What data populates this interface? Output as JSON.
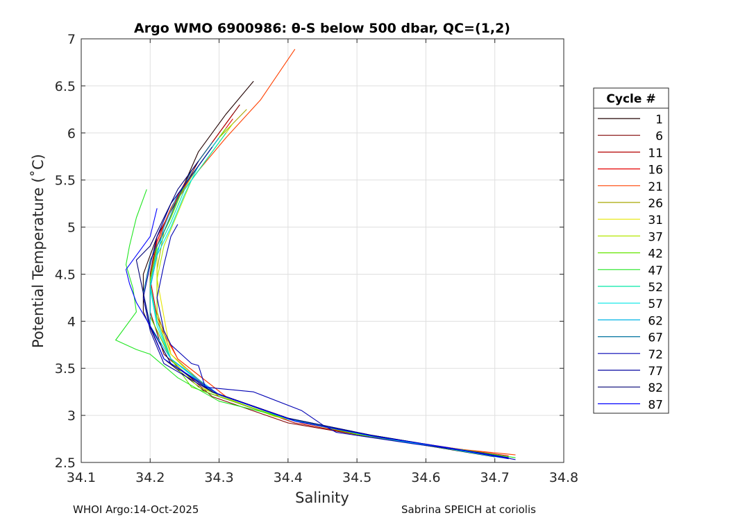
{
  "chart_data": {
    "type": "line",
    "title": "Argo WMO 6900986: θ-S below 500 dbar,  QC=(1,2)",
    "xlabel": "Salinity",
    "ylabel": "Potential Temperature (˚C)",
    "xlim": [
      34.1,
      34.8
    ],
    "ylim": [
      2.5,
      7
    ],
    "xticks": [
      "34.1",
      "34.2",
      "34.3",
      "34.4",
      "34.5",
      "34.6",
      "34.7",
      "34.8"
    ],
    "yticks": [
      "2.5",
      "3",
      "3.5",
      "4",
      "4.5",
      "5",
      "5.5",
      "6",
      "6.5",
      "7"
    ],
    "grid": true,
    "legend_title": "Cycle #",
    "legend_position": "right",
    "series": [
      {
        "name": "1",
        "color": "#200000",
        "points": [
          [
            34.35,
            6.55
          ],
          [
            34.31,
            6.2
          ],
          [
            34.27,
            5.8
          ],
          [
            34.24,
            5.3
          ],
          [
            34.21,
            4.9
          ],
          [
            34.19,
            4.5
          ],
          [
            34.19,
            4.1
          ],
          [
            34.22,
            3.6
          ],
          [
            34.28,
            3.25
          ],
          [
            34.38,
            3.0
          ],
          [
            34.5,
            2.8
          ],
          [
            34.6,
            2.68
          ],
          [
            34.7,
            2.56
          ]
        ]
      },
      {
        "name": "6",
        "color": "#7f0000",
        "points": [
          [
            34.33,
            6.3
          ],
          [
            34.3,
            6.0
          ],
          [
            34.27,
            5.7
          ],
          [
            34.24,
            5.3
          ],
          [
            34.21,
            4.9
          ],
          [
            34.2,
            4.5
          ],
          [
            34.2,
            4.1
          ],
          [
            34.22,
            3.65
          ],
          [
            34.29,
            3.2
          ],
          [
            34.4,
            2.92
          ],
          [
            34.52,
            2.77
          ],
          [
            34.62,
            2.66
          ],
          [
            34.72,
            2.55
          ]
        ]
      },
      {
        "name": "11",
        "color": "#b30000",
        "points": [
          [
            34.32,
            6.2
          ],
          [
            34.29,
            5.9
          ],
          [
            34.26,
            5.6
          ],
          [
            34.23,
            5.2
          ],
          [
            34.21,
            4.85
          ],
          [
            34.2,
            4.45
          ],
          [
            34.2,
            4.05
          ],
          [
            34.23,
            3.6
          ],
          [
            34.3,
            3.2
          ],
          [
            34.41,
            2.92
          ],
          [
            34.53,
            2.76
          ],
          [
            34.63,
            2.65
          ],
          [
            34.72,
            2.54
          ]
        ]
      },
      {
        "name": "16",
        "color": "#e60000",
        "points": [
          [
            34.32,
            6.15
          ],
          [
            34.29,
            5.85
          ],
          [
            34.26,
            5.55
          ],
          [
            34.23,
            5.2
          ],
          [
            34.21,
            4.85
          ],
          [
            34.2,
            4.45
          ],
          [
            34.21,
            4.05
          ],
          [
            34.24,
            3.6
          ],
          [
            34.31,
            3.2
          ],
          [
            34.42,
            2.92
          ],
          [
            34.54,
            2.76
          ],
          [
            34.64,
            2.65
          ],
          [
            34.72,
            2.57
          ]
        ]
      },
      {
        "name": "21",
        "color": "#ff4000",
        "points": [
          [
            34.41,
            6.89
          ],
          [
            34.36,
            6.35
          ],
          [
            34.31,
            5.95
          ],
          [
            34.27,
            5.6
          ],
          [
            34.23,
            5.2
          ],
          [
            34.21,
            4.8
          ],
          [
            34.2,
            4.4
          ],
          [
            34.21,
            4.0
          ],
          [
            34.24,
            3.6
          ],
          [
            34.31,
            3.2
          ],
          [
            34.42,
            2.92
          ],
          [
            34.55,
            2.75
          ],
          [
            34.65,
            2.64
          ],
          [
            34.73,
            2.58
          ]
        ]
      },
      {
        "name": "26",
        "color": "#a6a600",
        "points": [
          [
            34.34,
            6.25
          ],
          [
            34.3,
            5.95
          ],
          [
            34.27,
            5.65
          ],
          [
            34.24,
            5.3
          ],
          [
            34.22,
            4.95
          ],
          [
            34.21,
            4.55
          ],
          [
            34.21,
            4.1
          ],
          [
            34.23,
            3.65
          ],
          [
            34.29,
            3.25
          ],
          [
            34.4,
            2.96
          ],
          [
            34.52,
            2.78
          ],
          [
            34.62,
            2.66
          ],
          [
            34.71,
            2.56
          ]
        ]
      },
      {
        "name": "31",
        "color": "#e6e600",
        "points": [
          [
            34.31,
            6.05
          ],
          [
            34.28,
            5.75
          ],
          [
            34.25,
            5.45
          ],
          [
            34.23,
            5.1
          ],
          [
            34.21,
            4.8
          ],
          [
            34.21,
            4.45
          ],
          [
            34.22,
            4.05
          ],
          [
            34.23,
            3.65
          ],
          [
            34.28,
            3.28
          ],
          [
            34.39,
            2.98
          ],
          [
            34.51,
            2.79
          ],
          [
            34.61,
            2.67
          ],
          [
            34.71,
            2.56
          ]
        ]
      },
      {
        "name": "37",
        "color": "#b3e600",
        "points": [
          [
            34.32,
            6.1
          ],
          [
            34.29,
            5.8
          ],
          [
            34.26,
            5.5
          ],
          [
            34.24,
            5.15
          ],
          [
            34.22,
            4.8
          ],
          [
            34.21,
            4.45
          ],
          [
            34.21,
            4.05
          ],
          [
            34.23,
            3.6
          ],
          [
            34.27,
            3.3
          ],
          [
            34.38,
            2.99
          ],
          [
            34.5,
            2.8
          ],
          [
            34.61,
            2.67
          ],
          [
            34.71,
            2.56
          ]
        ]
      },
      {
        "name": "42",
        "color": "#66e600",
        "points": [
          [
            34.31,
            6.05
          ],
          [
            34.28,
            5.75
          ],
          [
            34.25,
            5.45
          ],
          [
            34.23,
            5.1
          ],
          [
            34.21,
            4.8
          ],
          [
            34.2,
            4.45
          ],
          [
            34.2,
            4.05
          ],
          [
            34.23,
            3.6
          ],
          [
            34.26,
            3.3
          ],
          [
            34.38,
            3.0
          ],
          [
            34.5,
            2.8
          ],
          [
            34.61,
            2.67
          ],
          [
            34.72,
            2.55
          ]
        ]
      },
      {
        "name": "47",
        "color": "#20e620",
        "points": [
          [
            34.195,
            5.4
          ],
          [
            34.18,
            5.1
          ],
          [
            34.17,
            4.8
          ],
          [
            34.165,
            4.6
          ],
          [
            34.175,
            4.35
          ],
          [
            34.18,
            4.1
          ],
          [
            34.15,
            3.8
          ],
          [
            34.18,
            3.7
          ],
          [
            34.2,
            3.65
          ],
          [
            34.24,
            3.4
          ],
          [
            34.3,
            3.15
          ],
          [
            34.4,
            2.97
          ],
          [
            34.52,
            2.79
          ],
          [
            34.62,
            2.67
          ],
          [
            34.73,
            2.55
          ]
        ]
      },
      {
        "name": "52",
        "color": "#00e6a6",
        "points": [
          [
            34.31,
            6.0
          ],
          [
            34.28,
            5.7
          ],
          [
            34.25,
            5.4
          ],
          [
            34.23,
            5.05
          ],
          [
            34.21,
            4.75
          ],
          [
            34.2,
            4.4
          ],
          [
            34.21,
            4.0
          ],
          [
            34.23,
            3.6
          ],
          [
            34.29,
            3.25
          ],
          [
            34.4,
            2.96
          ],
          [
            34.52,
            2.78
          ],
          [
            34.62,
            2.66
          ],
          [
            34.71,
            2.56
          ]
        ]
      },
      {
        "name": "57",
        "color": "#00e6e6",
        "points": [
          [
            34.3,
            5.95
          ],
          [
            34.27,
            5.65
          ],
          [
            34.25,
            5.35
          ],
          [
            34.23,
            5.0
          ],
          [
            34.21,
            4.7
          ],
          [
            34.2,
            4.35
          ],
          [
            34.21,
            3.95
          ],
          [
            34.23,
            3.6
          ],
          [
            34.29,
            3.25
          ],
          [
            34.4,
            2.96
          ],
          [
            34.52,
            2.78
          ],
          [
            34.62,
            2.66
          ],
          [
            34.71,
            2.55
          ]
        ]
      },
      {
        "name": "62",
        "color": "#00b3e6",
        "points": [
          [
            34.3,
            5.95
          ],
          [
            34.27,
            5.65
          ],
          [
            34.24,
            5.35
          ],
          [
            34.22,
            5.0
          ],
          [
            34.21,
            4.7
          ],
          [
            34.2,
            4.35
          ],
          [
            34.2,
            3.95
          ],
          [
            34.23,
            3.6
          ],
          [
            34.3,
            3.22
          ],
          [
            34.41,
            2.94
          ],
          [
            34.53,
            2.77
          ],
          [
            34.63,
            2.66
          ],
          [
            34.72,
            2.55
          ]
        ]
      },
      {
        "name": "67",
        "color": "#00739f",
        "points": [
          [
            34.29,
            5.9
          ],
          [
            34.26,
            5.6
          ],
          [
            34.24,
            5.3
          ],
          [
            34.22,
            4.95
          ],
          [
            34.2,
            4.65
          ],
          [
            34.19,
            4.3
          ],
          [
            34.2,
            3.95
          ],
          [
            34.23,
            3.55
          ],
          [
            34.3,
            3.22
          ],
          [
            34.41,
            2.94
          ],
          [
            34.53,
            2.77
          ],
          [
            34.63,
            2.66
          ],
          [
            34.72,
            2.54
          ]
        ]
      },
      {
        "name": "72",
        "color": "#0000b3",
        "points": [
          [
            34.24,
            5.03
          ],
          [
            34.23,
            4.9
          ],
          [
            34.22,
            4.6
          ],
          [
            34.21,
            4.25
          ],
          [
            34.22,
            3.9
          ],
          [
            34.23,
            3.75
          ],
          [
            34.26,
            3.55
          ],
          [
            34.27,
            3.53
          ],
          [
            34.28,
            3.3
          ],
          [
            34.35,
            3.25
          ],
          [
            34.42,
            3.05
          ],
          [
            34.45,
            2.9
          ],
          [
            34.47,
            2.82
          ],
          [
            34.58,
            2.7
          ],
          [
            34.68,
            2.6
          ],
          [
            34.73,
            2.53
          ]
        ]
      },
      {
        "name": "77",
        "color": "#00009f",
        "points": [
          [
            34.29,
            5.85
          ],
          [
            34.26,
            5.55
          ],
          [
            34.23,
            5.25
          ],
          [
            34.21,
            4.9
          ],
          [
            34.2,
            4.6
          ],
          [
            34.19,
            4.25
          ],
          [
            34.2,
            3.9
          ],
          [
            34.22,
            3.55
          ],
          [
            34.29,
            3.25
          ],
          [
            34.4,
            2.97
          ],
          [
            34.52,
            2.79
          ],
          [
            34.62,
            2.67
          ],
          [
            34.72,
            2.55
          ]
        ]
      },
      {
        "name": "82",
        "color": "#000073",
        "points": [
          [
            34.27,
            5.7
          ],
          [
            34.24,
            5.4
          ],
          [
            34.22,
            5.1
          ],
          [
            34.2,
            4.8
          ],
          [
            34.18,
            4.65
          ],
          [
            34.19,
            4.3
          ],
          [
            34.2,
            3.95
          ],
          [
            34.23,
            3.55
          ],
          [
            34.29,
            3.25
          ],
          [
            34.4,
            2.97
          ],
          [
            34.52,
            2.79
          ],
          [
            34.62,
            2.67
          ],
          [
            34.72,
            2.54
          ]
        ]
      },
      {
        "name": "87",
        "color": "#0000ff",
        "points": [
          [
            34.21,
            5.2
          ],
          [
            34.2,
            4.9
          ],
          [
            34.17,
            4.6
          ],
          [
            34.165,
            4.55
          ],
          [
            34.17,
            4.4
          ],
          [
            34.18,
            4.2
          ],
          [
            34.2,
            3.95
          ],
          [
            34.22,
            3.6
          ],
          [
            34.3,
            3.22
          ],
          [
            34.41,
            2.94
          ],
          [
            34.53,
            2.77
          ],
          [
            34.63,
            2.66
          ],
          [
            34.72,
            2.54
          ]
        ]
      }
    ]
  },
  "footer": {
    "left": "WHOI Argo:14-Oct-2025",
    "right": "Sabrina SPEICH at coriolis"
  }
}
